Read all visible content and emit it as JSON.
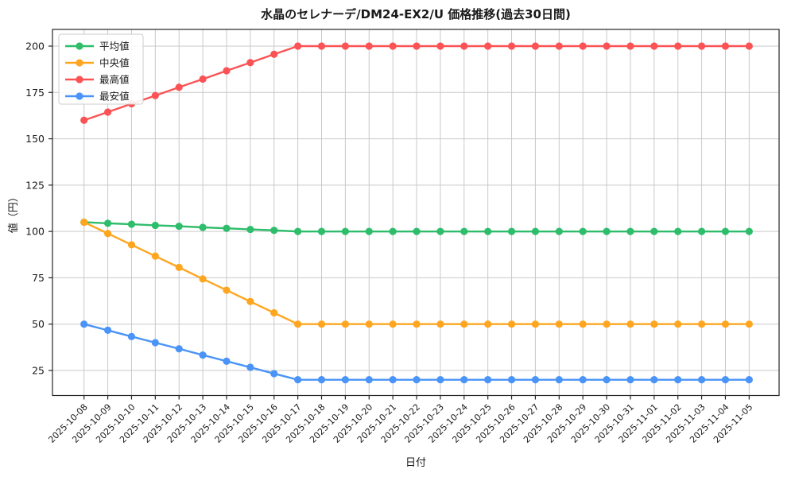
{
  "figure": {
    "title": "水晶のセレナーデ/DM24-EX2/U 価格推移(過去30日間)",
    "xlabel": "日付",
    "ylabel": "値（円）"
  },
  "chart_data": {
    "type": "line",
    "title": "水晶のセレナーデ/DM24-EX2/U 価格推移(過去30日間)",
    "xlabel": "日付",
    "ylabel": "値（円）",
    "grid": true,
    "legend_position": "upper left",
    "yticks": [
      25,
      50,
      75,
      100,
      125,
      150,
      175,
      200
    ],
    "ylim": [
      11,
      209
    ],
    "x": [
      "2025-10-08",
      "2025-10-09",
      "2025-10-10",
      "2025-10-11",
      "2025-10-12",
      "2025-10-13",
      "2025-10-14",
      "2025-10-15",
      "2025-10-16",
      "2025-10-17",
      "2025-10-18",
      "2025-10-19",
      "2025-10-20",
      "2025-10-21",
      "2025-10-22",
      "2025-10-23",
      "2025-10-24",
      "2025-10-25",
      "2025-10-26",
      "2025-10-27",
      "2025-10-28",
      "2025-10-29",
      "2025-10-30",
      "2025-10-31",
      "2025-11-01",
      "2025-11-02",
      "2025-11-03",
      "2025-11-04",
      "2025-11-05"
    ],
    "series": [
      {
        "key": "average",
        "name": "平均値",
        "color": "#2ebd6b",
        "values": [
          105,
          104.4,
          103.9,
          103.3,
          102.8,
          102.2,
          101.7,
          101.1,
          100.6,
          100,
          100,
          100,
          100,
          100,
          100,
          100,
          100,
          100,
          100,
          100,
          100,
          100,
          100,
          100,
          100,
          100,
          100,
          100,
          100
        ]
      },
      {
        "key": "median",
        "name": "中央値",
        "color": "#ffa621",
        "values": [
          105,
          98.9,
          92.8,
          86.7,
          80.6,
          74.4,
          68.3,
          62.2,
          56.1,
          50,
          50,
          50,
          50,
          50,
          50,
          50,
          50,
          50,
          50,
          50,
          50,
          50,
          50,
          50,
          50,
          50,
          50,
          50,
          50
        ]
      },
      {
        "key": "highest",
        "name": "最高値",
        "color": "#fb5355",
        "values": [
          160,
          164.4,
          168.9,
          173.3,
          177.8,
          182.2,
          186.7,
          191.1,
          195.6,
          200,
          200,
          200,
          200,
          200,
          200,
          200,
          200,
          200,
          200,
          200,
          200,
          200,
          200,
          200,
          200,
          200,
          200,
          200,
          200
        ]
      },
      {
        "key": "lowest",
        "name": "最安値",
        "color": "#4a94f7",
        "values": [
          50,
          46.7,
          43.3,
          40,
          36.7,
          33.3,
          30,
          26.7,
          23.3,
          20,
          20,
          20,
          20,
          20,
          20,
          20,
          20,
          20,
          20,
          20,
          20,
          20,
          20,
          20,
          20,
          20,
          20,
          20,
          20
        ]
      }
    ]
  }
}
